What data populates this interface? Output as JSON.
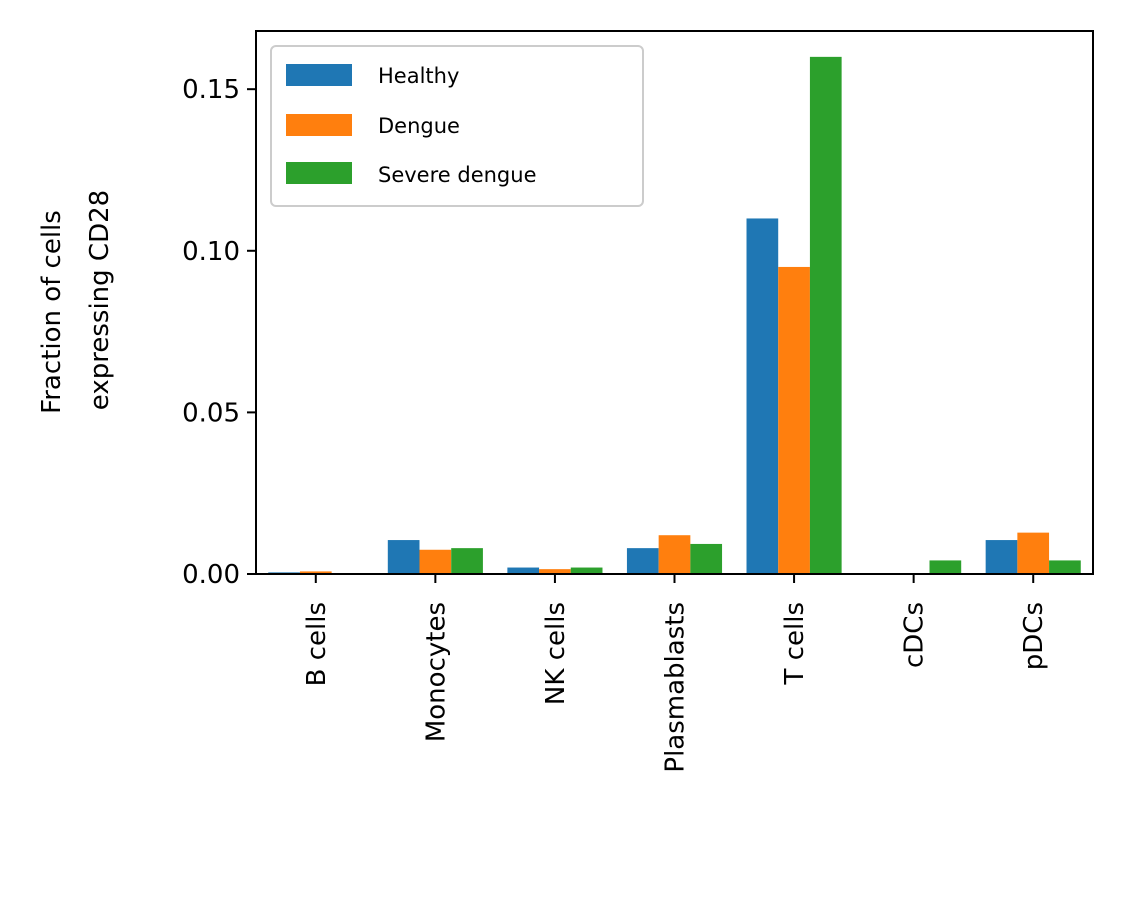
{
  "chart_data": {
    "type": "bar",
    "title": "",
    "xlabel": "",
    "ylabel_lines": [
      "Fraction of cells",
      "expressing CD28"
    ],
    "categories": [
      "B cells",
      "Monocytes",
      "NK cells",
      "Plasmablasts",
      "T cells",
      "cDCs",
      "pDCs"
    ],
    "series": [
      {
        "name": "Healthy",
        "color": "#1f77b4",
        "values": [
          0.0005,
          0.0105,
          0.002,
          0.008,
          0.11,
          0.0,
          0.0105
        ]
      },
      {
        "name": "Dengue",
        "color": "#ff7f0e",
        "values": [
          0.0008,
          0.0075,
          0.0015,
          0.012,
          0.095,
          0.0,
          0.0128
        ]
      },
      {
        "name": "Severe dengue",
        "color": "#2ca02c",
        "values": [
          0.0,
          0.008,
          0.002,
          0.0093,
          0.16,
          0.0042,
          0.0042
        ]
      }
    ],
    "ylim": [
      0,
      0.168
    ],
    "yticks": [
      "0.00",
      "0.05",
      "0.10",
      "0.15"
    ],
    "ytick_values": [
      0,
      0.05,
      0.1,
      0.15
    ],
    "grid": false,
    "legend_position": "top-left"
  }
}
